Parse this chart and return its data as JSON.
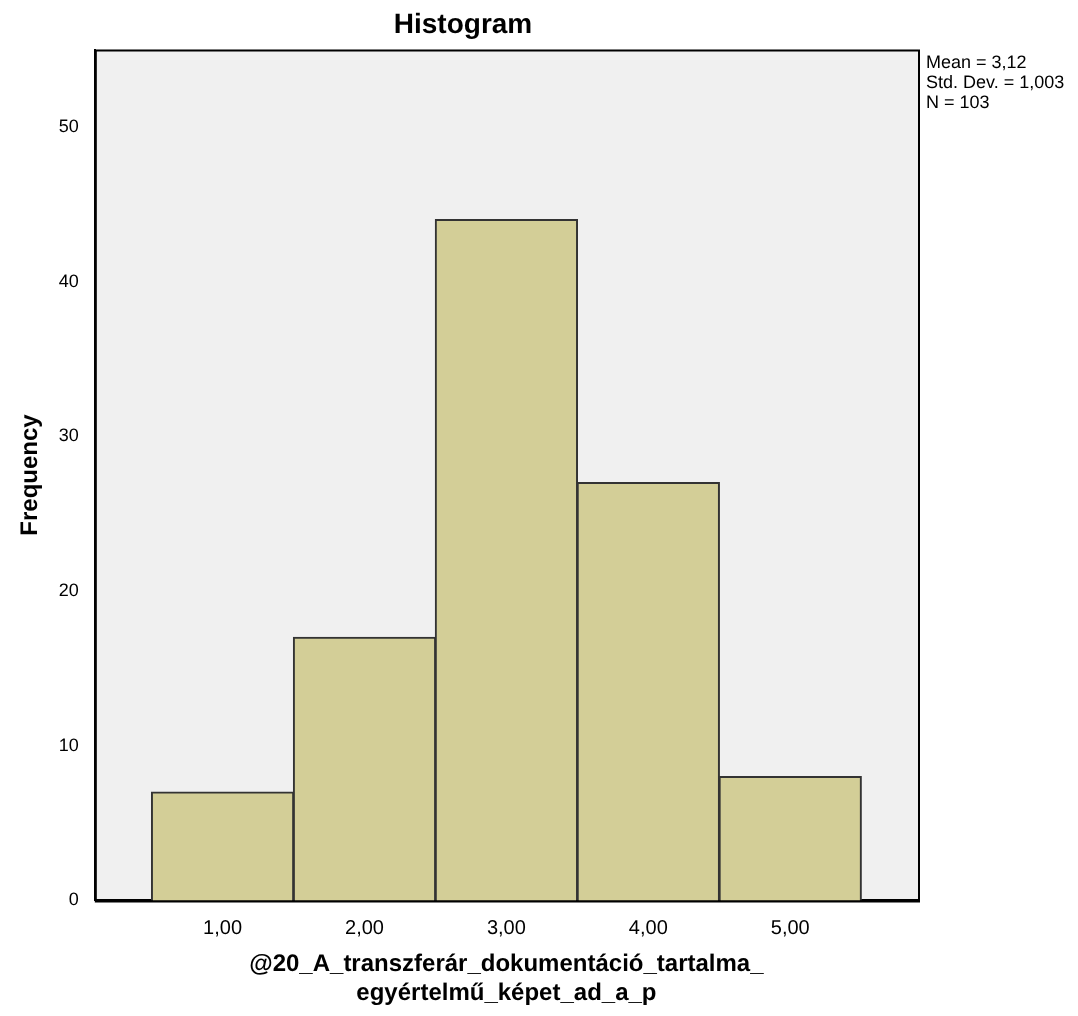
{
  "chart_data": {
    "type": "histogram",
    "title": "Histogram",
    "xlabel": "@20_A_transzferár_dokumentáció_tartalma_\negyértelmű_képet_ad_a_p",
    "ylabel": "Frequency",
    "bins": [
      0.5,
      1.5,
      2.5,
      3.5,
      4.5,
      5.5
    ],
    "values": [
      7,
      17,
      44,
      27,
      8
    ],
    "color": "#d3ce97",
    "xlim": [
      0.1,
      5.9
    ],
    "xticks": [
      {
        "value": 1,
        "label": "1,00"
      },
      {
        "value": 2,
        "label": "2,00"
      },
      {
        "value": 3,
        "label": "3,00"
      },
      {
        "value": 4,
        "label": "4,00"
      },
      {
        "value": 5,
        "label": "5,00"
      }
    ],
    "ylim": [
      0,
      55
    ],
    "yticks": [
      0,
      10,
      20,
      30,
      40,
      50
    ],
    "annotations": [
      "Mean = 3,12",
      "Std. Dev. = 1,003",
      "N = 103"
    ]
  }
}
